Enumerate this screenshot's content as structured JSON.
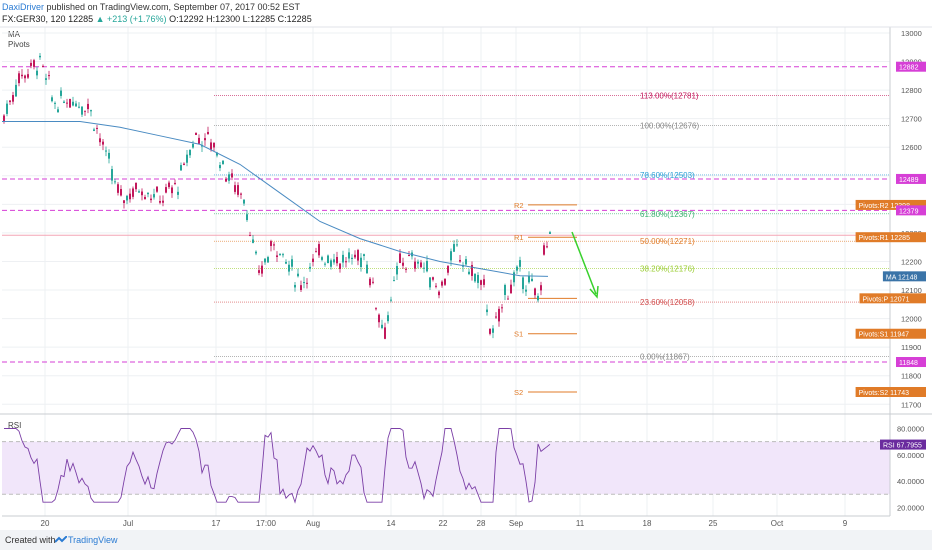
{
  "header": {
    "author": "DaxiDriver",
    "published": "published on TradingView.com, September 07, 2017 00:52 EST",
    "symbol": "FX:GER30, 120",
    "last": "12285",
    "change": "▲ +213 (+1.76%)",
    "ohlc": "O:12292 H:12300 L:12285 C:12285"
  },
  "indicators": {
    "ma": "MA",
    "pivots": "Pivots",
    "rsi": "RSI"
  },
  "footer": {
    "created": "Created with",
    "brand": "TradingView"
  },
  "colors": {
    "up": "#26a69a",
    "down": "#c2185b",
    "ma": "#4a8bc2",
    "rsi": "#7b3fa6",
    "dashed": "#d63fd6",
    "pivot": "#e07b28",
    "arrow": "#39d12d"
  },
  "chart_data": {
    "type": "candlestick",
    "y_ticks": [
      13000,
      12900,
      12800,
      12700,
      12600,
      12500,
      12400,
      12300,
      12200,
      12100,
      12000,
      11900,
      11800,
      11700
    ],
    "x_ticks": [
      "20",
      "Jul",
      "17",
      "17:00",
      "Aug",
      "14",
      "22",
      "28",
      "Sep",
      "11",
      "18",
      "25",
      "Oct",
      "9"
    ],
    "ylim": [
      11660,
      13020
    ],
    "horizontal_levels": [
      12882,
      12489,
      12379,
      11848
    ],
    "fibonacci": [
      {
        "label": "113.00%(12781)",
        "value": 12781
      },
      {
        "label": "100.00%(12676)",
        "value": 12676
      },
      {
        "label": "78.60%(12503)",
        "value": 12503
      },
      {
        "label": "61.80%(12367)",
        "value": 12367
      },
      {
        "label": "50.00%(12271)",
        "value": 12271
      },
      {
        "label": "38.20%(12176)",
        "value": 12176
      },
      {
        "label": "23.60%(12058)",
        "value": 12058
      },
      {
        "label": "0.00%(11867)",
        "value": 11867
      }
    ],
    "pivots": [
      {
        "label": "R2",
        "value": 12398
      },
      {
        "label": "R1",
        "value": 12285
      },
      {
        "label": "S1",
        "value": 11947
      },
      {
        "label": "S2",
        "value": 11743
      }
    ],
    "price_labels": [
      {
        "text": "12882",
        "value": 12882,
        "kind": "level"
      },
      {
        "text": "12489",
        "value": 12489,
        "kind": "level"
      },
      {
        "text": "Pivots:R2  12398",
        "value": 12398,
        "kind": "pivot"
      },
      {
        "text": "12379",
        "value": 12379,
        "kind": "level"
      },
      {
        "text": "Pivots:R1  12285",
        "value": 12285,
        "kind": "pivot"
      },
      {
        "text": "MA  12148",
        "value": 12148,
        "kind": "ma"
      },
      {
        "text": "Pivots:P  12071",
        "value": 12071,
        "kind": "pivot"
      },
      {
        "text": "Pivots:S1  11947",
        "value": 11947,
        "kind": "pivot"
      },
      {
        "text": "11848",
        "value": 11848,
        "kind": "level"
      },
      {
        "text": "Pivots:S2  11743",
        "value": 11743,
        "kind": "pivot"
      }
    ],
    "series": [
      {
        "name": "MA",
        "value": 12148
      },
      {
        "name": "RSI",
        "value": 67.7955
      }
    ],
    "rsi": {
      "y_ticks": [
        80,
        60,
        40,
        20
      ],
      "ylim": [
        15,
        88
      ],
      "band": [
        70,
        30
      ],
      "label": "RSI  67.7955"
    }
  }
}
